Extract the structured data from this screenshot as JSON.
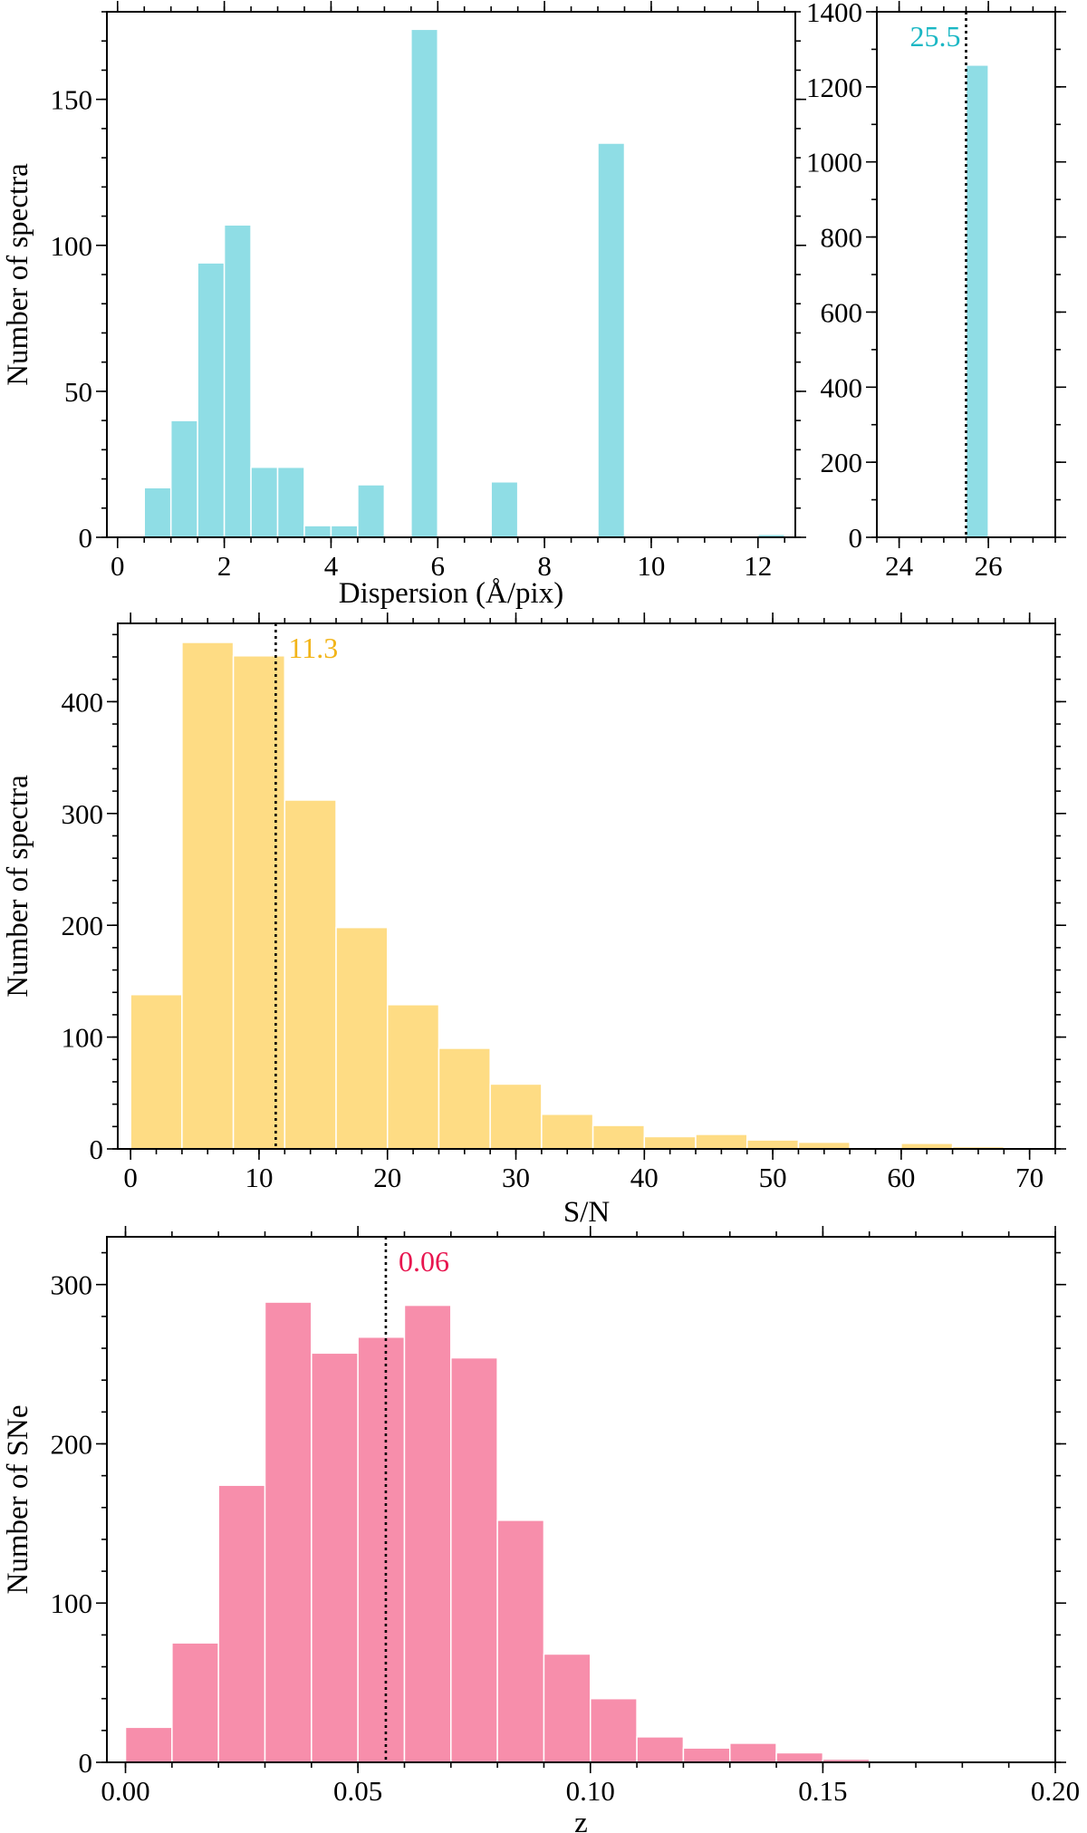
{
  "chart_data": [
    {
      "type": "bar",
      "name": "dispersion-main",
      "xlabel": "Dispersion (Å/pix)",
      "ylabel": "Number of spectra",
      "xlim": [
        -0.2,
        12.7
      ],
      "ylim": [
        0,
        180
      ],
      "xticks": [
        0,
        2,
        4,
        6,
        8,
        10,
        12
      ],
      "xtick_labels": [
        "0",
        "2",
        "4",
        "6",
        "8",
        "10",
        "12"
      ],
      "yticks": [
        0,
        50,
        100,
        150
      ],
      "ytick_labels": [
        "0",
        "50",
        "100",
        "150"
      ],
      "color": "#8fdde5",
      "bins": [
        {
          "x0": 0.5,
          "x1": 1.0,
          "value": 17
        },
        {
          "x0": 1.0,
          "x1": 1.5,
          "value": 40
        },
        {
          "x0": 1.5,
          "x1": 2.0,
          "value": 94
        },
        {
          "x0": 2.0,
          "x1": 2.5,
          "value": 107
        },
        {
          "x0": 2.5,
          "x1": 3.0,
          "value": 24
        },
        {
          "x0": 3.0,
          "x1": 3.5,
          "value": 24
        },
        {
          "x0": 3.5,
          "x1": 4.0,
          "value": 4
        },
        {
          "x0": 4.0,
          "x1": 4.5,
          "value": 4
        },
        {
          "x0": 4.5,
          "x1": 5.0,
          "value": 18
        },
        {
          "x0": 5.5,
          "x1": 6.0,
          "value": 174
        },
        {
          "x0": 7.0,
          "x1": 7.5,
          "value": 19
        },
        {
          "x0": 9.0,
          "x1": 9.5,
          "value": 135
        },
        {
          "x0": 12.0,
          "x1": 12.5,
          "value": 1
        }
      ]
    },
    {
      "type": "bar",
      "name": "dispersion-inset",
      "xlim": [
        23.5,
        27.5
      ],
      "ylim": [
        0,
        1400
      ],
      "xticks": [
        24,
        26
      ],
      "xtick_labels": [
        "24",
        "26"
      ],
      "yticks": [
        0,
        200,
        400,
        600,
        800,
        1000,
        1200,
        1400
      ],
      "ytick_labels": [
        "0",
        "200",
        "400",
        "600",
        "800",
        "1000",
        "1200",
        "1400"
      ],
      "color": "#8fdde5",
      "bins": [
        {
          "x0": 25.5,
          "x1": 26.0,
          "value": 1258
        }
      ],
      "marker": {
        "x": 25.5,
        "label": "25.5",
        "color": "#1ab7c4"
      }
    },
    {
      "type": "bar",
      "name": "snr",
      "xlabel": "S/N",
      "ylabel": "Number of spectra",
      "xlim": [
        -1,
        72
      ],
      "ylim": [
        0,
        470
      ],
      "xticks": [
        0,
        10,
        20,
        30,
        40,
        50,
        60,
        70
      ],
      "xtick_labels": [
        "0",
        "10",
        "20",
        "30",
        "40",
        "50",
        "60",
        "70"
      ],
      "yticks": [
        0,
        100,
        200,
        300,
        400
      ],
      "ytick_labels": [
        "0",
        "100",
        "200",
        "300",
        "400"
      ],
      "color": "#fedc84",
      "bins": [
        {
          "x0": 0,
          "x1": 4,
          "value": 138
        },
        {
          "x0": 4,
          "x1": 8,
          "value": 453
        },
        {
          "x0": 8,
          "x1": 12,
          "value": 441
        },
        {
          "x0": 12,
          "x1": 16,
          "value": 312
        },
        {
          "x0": 16,
          "x1": 20,
          "value": 198
        },
        {
          "x0": 20,
          "x1": 24,
          "value": 129
        },
        {
          "x0": 24,
          "x1": 28,
          "value": 90
        },
        {
          "x0": 28,
          "x1": 32,
          "value": 58
        },
        {
          "x0": 32,
          "x1": 36,
          "value": 31
        },
        {
          "x0": 36,
          "x1": 40,
          "value": 21
        },
        {
          "x0": 40,
          "x1": 44,
          "value": 11
        },
        {
          "x0": 44,
          "x1": 48,
          "value": 13
        },
        {
          "x0": 48,
          "x1": 52,
          "value": 8
        },
        {
          "x0": 52,
          "x1": 56,
          "value": 6
        },
        {
          "x0": 56,
          "x1": 60,
          "value": 1
        },
        {
          "x0": 60,
          "x1": 64,
          "value": 5
        },
        {
          "x0": 64,
          "x1": 68,
          "value": 2
        }
      ],
      "marker": {
        "x": 11.3,
        "label": "11.3",
        "color": "#f2b418"
      }
    },
    {
      "type": "bar",
      "name": "redshift",
      "xlabel": "z",
      "ylabel": "Number of SNe",
      "xlim": [
        -0.004,
        0.2
      ],
      "ylim": [
        0,
        330
      ],
      "xticks": [
        0.0,
        0.05,
        0.1,
        0.15,
        0.2
      ],
      "xtick_labels": [
        "0.00",
        "0.05",
        "0.10",
        "0.15",
        "0.20"
      ],
      "yticks": [
        0,
        100,
        200,
        300
      ],
      "ytick_labels": [
        "0",
        "100",
        "200",
        "300"
      ],
      "color": "#f78eab",
      "bins": [
        {
          "x0": 0.0,
          "x1": 0.01,
          "value": 22
        },
        {
          "x0": 0.01,
          "x1": 0.02,
          "value": 75
        },
        {
          "x0": 0.02,
          "x1": 0.03,
          "value": 174
        },
        {
          "x0": 0.03,
          "x1": 0.04,
          "value": 289
        },
        {
          "x0": 0.04,
          "x1": 0.05,
          "value": 257
        },
        {
          "x0": 0.05,
          "x1": 0.06,
          "value": 267
        },
        {
          "x0": 0.06,
          "x1": 0.07,
          "value": 287
        },
        {
          "x0": 0.07,
          "x1": 0.08,
          "value": 254
        },
        {
          "x0": 0.08,
          "x1": 0.09,
          "value": 152
        },
        {
          "x0": 0.09,
          "x1": 0.1,
          "value": 68
        },
        {
          "x0": 0.1,
          "x1": 0.11,
          "value": 40
        },
        {
          "x0": 0.11,
          "x1": 0.12,
          "value": 16
        },
        {
          "x0": 0.12,
          "x1": 0.13,
          "value": 9
        },
        {
          "x0": 0.13,
          "x1": 0.14,
          "value": 12
        },
        {
          "x0": 0.14,
          "x1": 0.15,
          "value": 6
        },
        {
          "x0": 0.15,
          "x1": 0.16,
          "value": 2
        }
      ],
      "marker": {
        "x": 0.056,
        "label": "0.06",
        "color": "#e8154f"
      }
    }
  ]
}
